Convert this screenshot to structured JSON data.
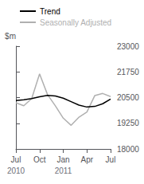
{
  "chart_data": {
    "type": "line",
    "ylabel": "$m",
    "x": [
      0,
      1,
      2,
      3,
      4,
      5,
      6,
      7,
      8,
      9,
      10,
      11,
      12
    ],
    "xlim": [
      0,
      12
    ],
    "xticks": [
      {
        "value": 0,
        "label": "Jul"
      },
      {
        "value": 3,
        "label": "Oct"
      },
      {
        "value": 6,
        "label": "Jan"
      },
      {
        "value": 9,
        "label": "Apr"
      },
      {
        "value": 12,
        "label": "Jul"
      }
    ],
    "ylim": [
      18000,
      23000
    ],
    "yticks": [
      18000,
      19250,
      20500,
      21750,
      23000
    ],
    "series": [
      {
        "name": "Trend",
        "color": "#000000",
        "values": [
          20350,
          20390,
          20450,
          20540,
          20610,
          20580,
          20470,
          20300,
          20130,
          20040,
          20070,
          20200,
          20430
        ]
      },
      {
        "name": "Seasonally Adjusted",
        "color": "#b0b0b0",
        "values": [
          20250,
          20100,
          20450,
          21650,
          20650,
          20100,
          19500,
          19150,
          19550,
          19800,
          20600,
          20700,
          20550
        ]
      }
    ],
    "annotations": [
      {
        "text": "2010",
        "x": 0
      },
      {
        "text": "2011",
        "x": 6
      }
    ],
    "grid": false,
    "legend": "top left"
  }
}
